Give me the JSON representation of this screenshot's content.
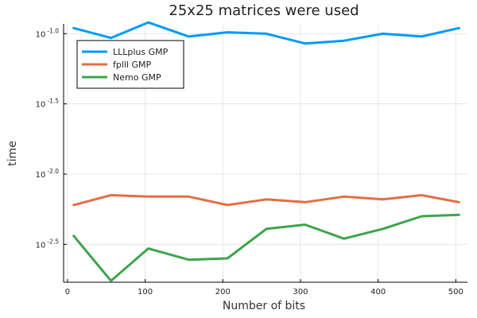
{
  "chart_data": {
    "type": "line",
    "title": "25x25 matrices were used",
    "xlabel": "Number of bits",
    "ylabel": "time",
    "xlim": [
      -5,
      515
    ],
    "ylim": [
      -2.77,
      -0.93
    ],
    "y_scale": "log10",
    "grid": true,
    "legend_position": "top-left",
    "x_ticks": [
      0,
      100,
      200,
      300,
      400,
      500
    ],
    "y_ticks": [
      {
        "value": -1.0,
        "base": "10",
        "exp": "-1.0"
      },
      {
        "value": -1.5,
        "base": "10",
        "exp": "-1.5"
      },
      {
        "value": -2.0,
        "base": "10",
        "exp": "-2.0"
      },
      {
        "value": -2.5,
        "base": "10",
        "exp": "-2.5"
      }
    ],
    "x": [
      8,
      56,
      104,
      156,
      206,
      256,
      306,
      356,
      406,
      456,
      504
    ],
    "series": [
      {
        "name": "LLLplus GMP",
        "color": "#009AFA",
        "values": [
          -0.96,
          -1.03,
          -0.92,
          -1.02,
          -0.99,
          -1.0,
          -1.07,
          -1.05,
          -1.0,
          -1.02,
          -0.96
        ]
      },
      {
        "name": "fplll GMP",
        "color": "#E26F46",
        "values": [
          -2.22,
          -2.15,
          -2.16,
          -2.16,
          -2.22,
          -2.18,
          -2.2,
          -2.16,
          -2.18,
          -2.15,
          -2.2
        ]
      },
      {
        "name": "Nemo GMP",
        "color": "#3DA44D",
        "values": [
          -2.44,
          -2.76,
          -2.53,
          -2.61,
          -2.6,
          -2.39,
          -2.36,
          -2.46,
          -2.39,
          -2.3,
          -2.29
        ]
      }
    ]
  }
}
